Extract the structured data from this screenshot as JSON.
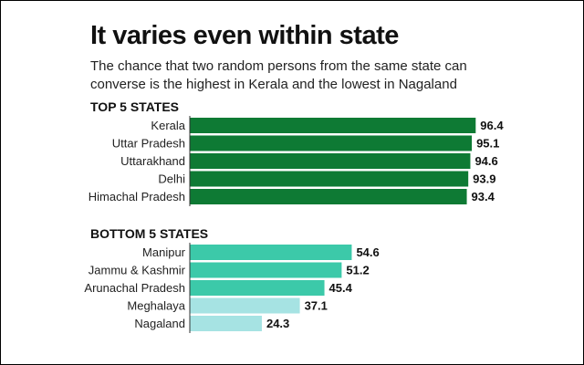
{
  "title": "It varies even within state",
  "subtitle": "The chance that two random persons from the same state can converse is the highest in Kerala and the lowest in Nagaland",
  "chart_data": [
    {
      "type": "bar",
      "orientation": "horizontal",
      "section_title": "TOP 5 STATES",
      "categories": [
        "Kerala",
        "Uttar Pradesh",
        "Uttarakhand",
        "Delhi",
        "Himachal Pradesh"
      ],
      "values": [
        96.4,
        95.1,
        94.6,
        93.9,
        93.4
      ],
      "colors": [
        "#0e7a34",
        "#0e7a34",
        "#0e7a34",
        "#0e7a34",
        "#0e7a34"
      ],
      "xlim": [
        0,
        100
      ],
      "grid": false
    },
    {
      "type": "bar",
      "orientation": "horizontal",
      "section_title": "BOTTOM 5 STATES",
      "categories": [
        "Manipur",
        "Jammu & Kashmir",
        "Arunachal Pradesh",
        "Meghalaya",
        "Nagaland"
      ],
      "values": [
        54.6,
        51.2,
        45.4,
        37.1,
        24.3
      ],
      "colors": [
        "#3cc9a9",
        "#3cc9a9",
        "#3cc9a9",
        "#a6e3e3",
        "#a6e3e3"
      ],
      "xlim": [
        0,
        100
      ],
      "grid": false
    }
  ]
}
